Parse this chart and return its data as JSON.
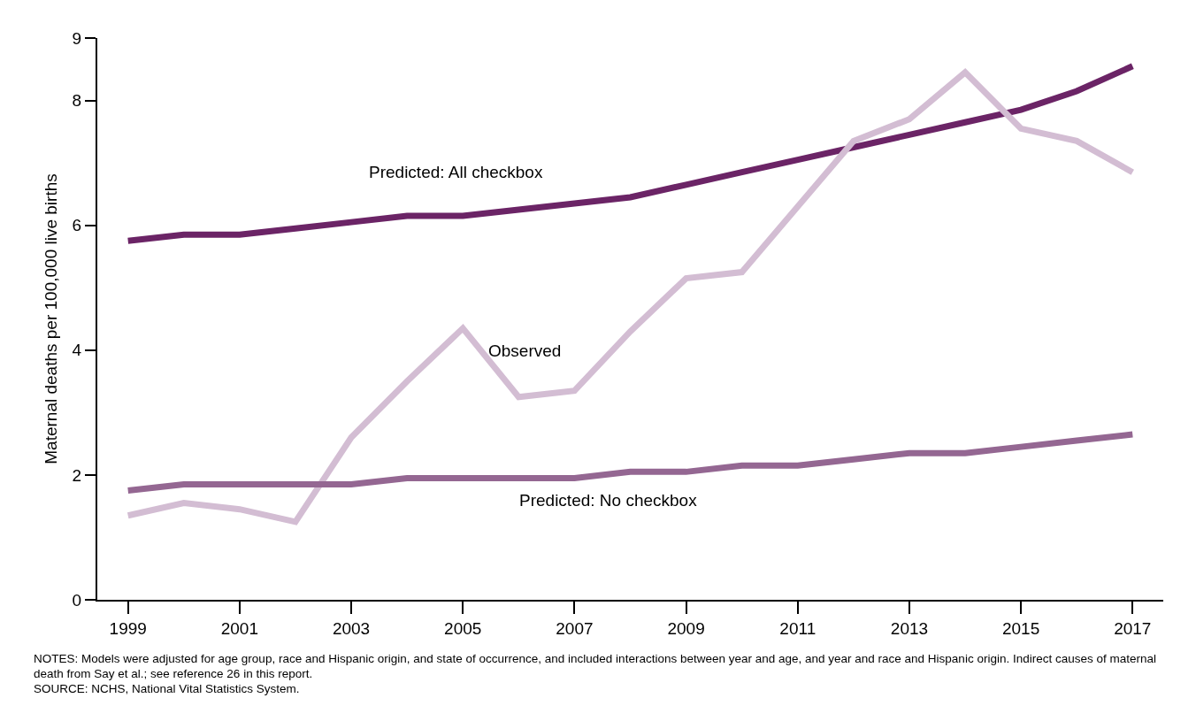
{
  "chart_data": {
    "type": "line",
    "ylabel": "Maternal deaths per 100,000 live births",
    "x": [
      1999,
      2000,
      2001,
      2002,
      2003,
      2004,
      2005,
      2006,
      2007,
      2008,
      2009,
      2010,
      2011,
      2012,
      2013,
      2014,
      2015,
      2016,
      2017
    ],
    "series": [
      {
        "name": "Predicted: All checkbox",
        "color": "#6b2466",
        "values": [
          5.75,
          5.85,
          5.85,
          5.95,
          6.05,
          6.15,
          6.15,
          6.25,
          6.35,
          6.45,
          6.65,
          6.85,
          7.05,
          7.25,
          7.45,
          7.65,
          7.85,
          8.15,
          8.55
        ]
      },
      {
        "name": "Observed",
        "color": "#d3bdd3",
        "values": [
          1.35,
          1.55,
          1.45,
          1.25,
          2.6,
          3.5,
          4.35,
          3.25,
          3.35,
          4.3,
          5.15,
          5.25,
          6.3,
          7.35,
          7.7,
          8.45,
          7.55,
          7.35,
          6.85
        ]
      },
      {
        "name": "Predicted: No checkbox",
        "color": "#946792",
        "values": [
          1.75,
          1.85,
          1.85,
          1.85,
          1.85,
          1.95,
          1.95,
          1.95,
          1.95,
          2.05,
          2.05,
          2.15,
          2.15,
          2.25,
          2.35,
          2.35,
          2.45,
          2.55,
          2.65
        ]
      }
    ],
    "xlim": [
      1998.45,
      2017.55
    ],
    "xticks": [
      1999,
      2001,
      2003,
      2005,
      2007,
      2009,
      2011,
      2013,
      2015,
      2017
    ],
    "ylim": [
      0,
      9
    ],
    "yticks": [
      0,
      2,
      4,
      6,
      8,
      9
    ],
    "grid": false,
    "legend": false,
    "marker": "none",
    "line_style": "solid",
    "annotations": [
      "NOTES: Models were adjusted for age group, race and Hispanic origin, and state of occurrence, and included interactions between year and age, and year and race and Hispanic origin. Indirect causes of maternal death from Say et al.; see reference 26 in this report.",
      "SOURCE: NCHS, National Vital Statistics System."
    ]
  }
}
